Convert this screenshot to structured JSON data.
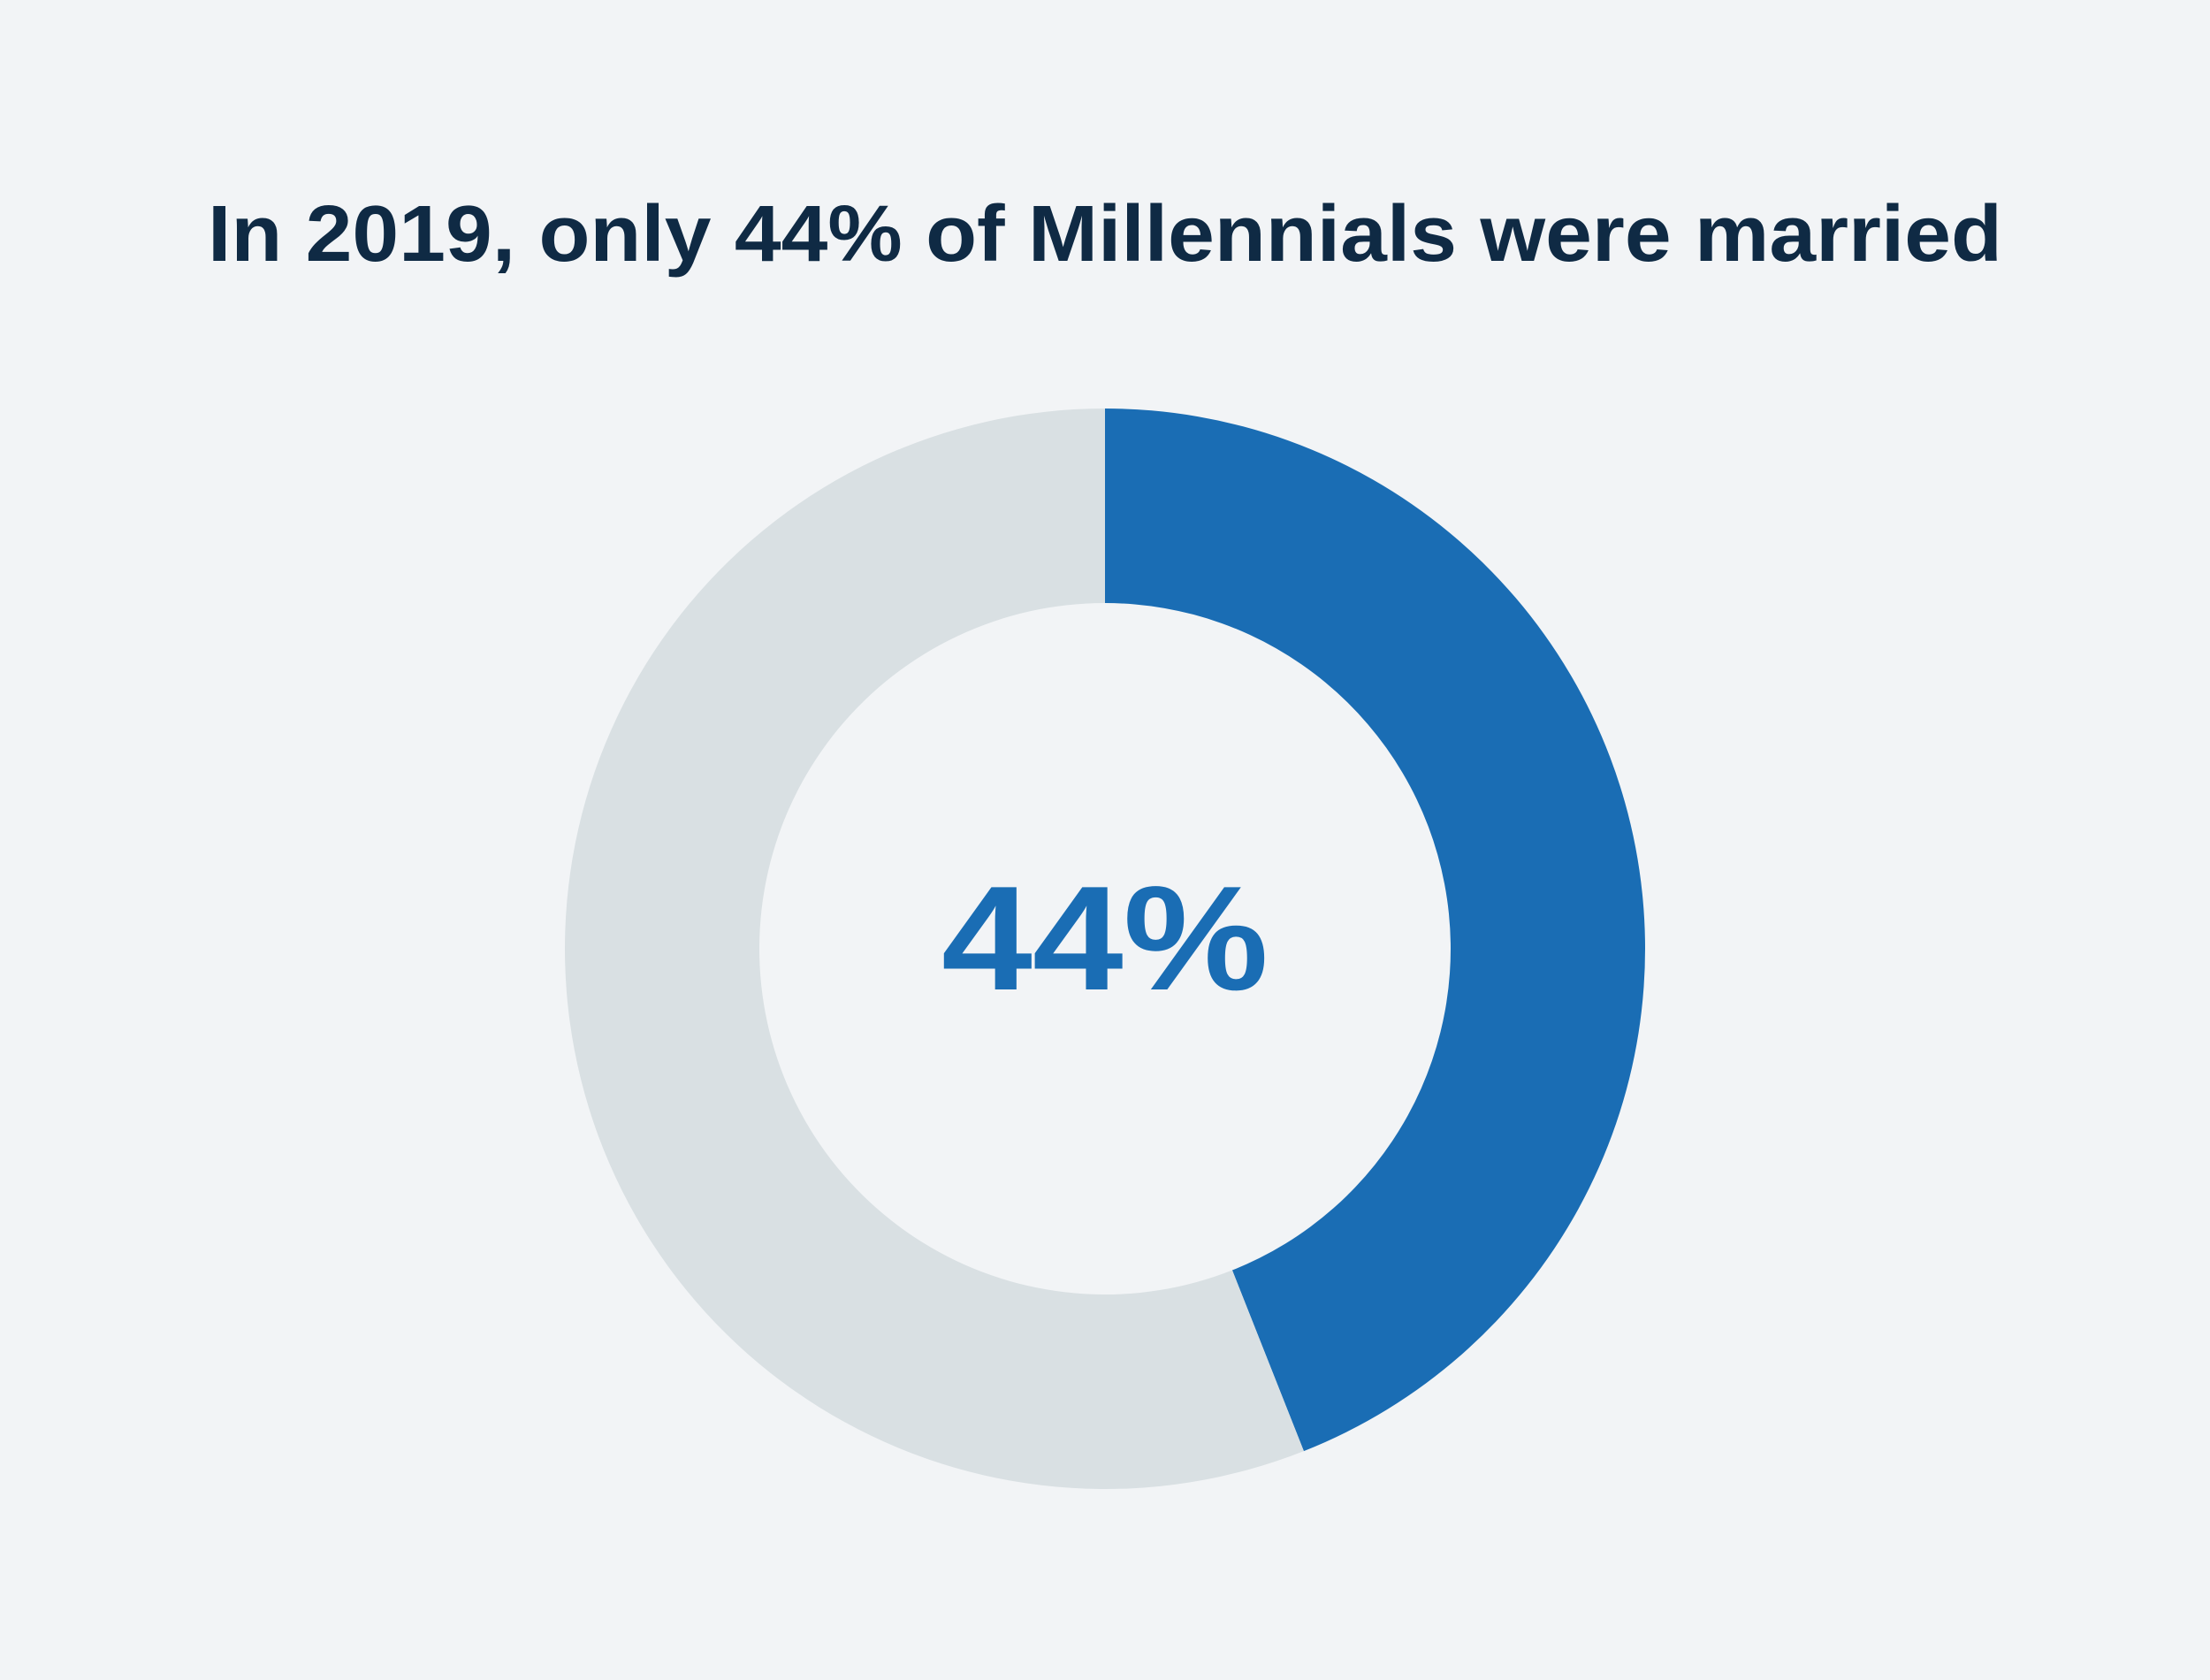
{
  "chart_data": {
    "type": "pie",
    "variant": "donut",
    "title": "In 2019, only 44% of Millennials were married",
    "center_label": "44%",
    "slices": [
      {
        "value": 44,
        "color": "#1a6db4"
      },
      {
        "value": 56,
        "color": "#d9e0e3"
      }
    ]
  },
  "colors": {
    "background": "#f2f4f6",
    "title": "#0f2a44"
  }
}
